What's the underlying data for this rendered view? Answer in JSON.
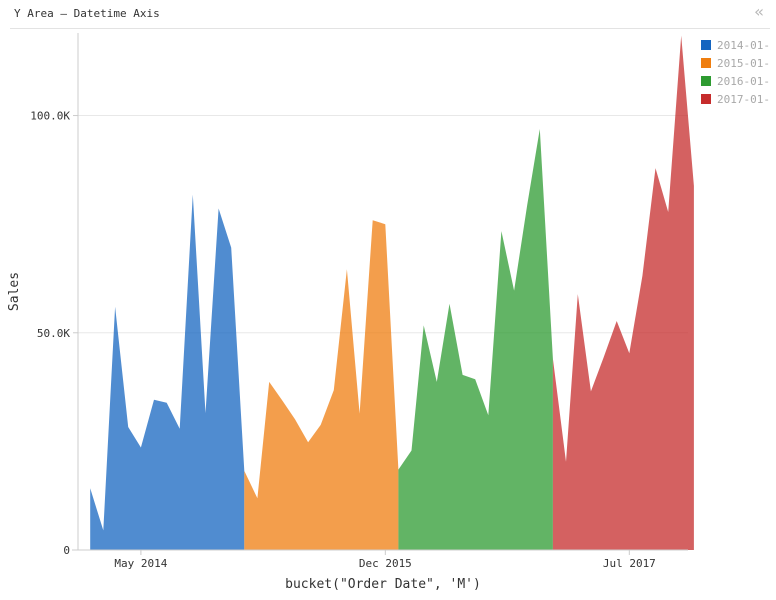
{
  "header": {
    "title": "Y Area – Datetime Axis",
    "collapse_glyph": "«",
    "collapse_icon": "double-chevron-left-icon"
  },
  "chart_data": {
    "type": "area",
    "xlabel": "bucket(\"Order Date\", 'M')",
    "ylabel": "Sales",
    "x_ticks": [
      {
        "date": "2014-05-01",
        "label": "May 2014"
      },
      {
        "date": "2015-12-01",
        "label": "Dec 2015"
      },
      {
        "date": "2017-07-01",
        "label": "Jul 2017"
      }
    ],
    "y_ticks": [
      {
        "value": 0,
        "label": "0"
      },
      {
        "value": 50000,
        "label": "50.0K"
      },
      {
        "value": 100000,
        "label": "100.0K"
      }
    ],
    "ylim": [
      0,
      119000
    ],
    "xlim": [
      "2013-12-03",
      "2017-11-17"
    ],
    "grid": true,
    "legend_position": "top-right",
    "series": [
      {
        "name": "2014-01-",
        "color": "#1565c0",
        "points": [
          [
            "2014-01-01",
            14200
          ],
          [
            "2014-02-01",
            4500
          ],
          [
            "2014-03-01",
            56000
          ],
          [
            "2014-04-01",
            28300
          ],
          [
            "2014-05-01",
            23600
          ],
          [
            "2014-06-01",
            34600
          ],
          [
            "2014-07-01",
            33900
          ],
          [
            "2014-08-01",
            27900
          ],
          [
            "2014-09-01",
            81800
          ],
          [
            "2014-10-01",
            31500
          ],
          [
            "2014-11-01",
            78600
          ],
          [
            "2014-12-01",
            69600
          ],
          [
            "2015-01-01",
            18200
          ]
        ]
      },
      {
        "name": "2015-01-",
        "color": "#ef7e10",
        "points": [
          [
            "2015-01-01",
            18200
          ],
          [
            "2015-02-01",
            11900
          ],
          [
            "2015-03-01",
            38700
          ],
          [
            "2015-04-01",
            34400
          ],
          [
            "2015-05-01",
            30100
          ],
          [
            "2015-06-01",
            24800
          ],
          [
            "2015-07-01",
            28800
          ],
          [
            "2015-08-01",
            36800
          ],
          [
            "2015-09-01",
            64600
          ],
          [
            "2015-10-01",
            31400
          ],
          [
            "2015-11-01",
            75900
          ],
          [
            "2015-12-01",
            75000
          ],
          [
            "2016-01-01",
            18500
          ]
        ]
      },
      {
        "name": "2016-01-",
        "color": "#2e9b31",
        "points": [
          [
            "2016-01-01",
            18500
          ],
          [
            "2016-02-01",
            22900
          ],
          [
            "2016-03-01",
            51700
          ],
          [
            "2016-04-01",
            38700
          ],
          [
            "2016-05-01",
            56700
          ],
          [
            "2016-06-01",
            40300
          ],
          [
            "2016-07-01",
            39300
          ],
          [
            "2016-08-01",
            31000
          ],
          [
            "2016-09-01",
            73400
          ],
          [
            "2016-10-01",
            59700
          ],
          [
            "2016-11-01",
            79400
          ],
          [
            "2016-12-01",
            96900
          ],
          [
            "2017-01-01",
            44000
          ]
        ]
      },
      {
        "name": "2017-01-",
        "color": "#c62c2c",
        "points": [
          [
            "2017-01-01",
            44000
          ],
          [
            "2017-02-01",
            20300
          ],
          [
            "2017-03-01",
            58900
          ],
          [
            "2017-04-01",
            36500
          ],
          [
            "2017-05-01",
            44300
          ],
          [
            "2017-06-01",
            52700
          ],
          [
            "2017-07-01",
            45300
          ],
          [
            "2017-08-01",
            63100
          ],
          [
            "2017-09-01",
            87900
          ],
          [
            "2017-10-01",
            77800
          ],
          [
            "2017-11-01",
            118400
          ],
          [
            "2017-12-01",
            83800
          ]
        ]
      }
    ]
  }
}
